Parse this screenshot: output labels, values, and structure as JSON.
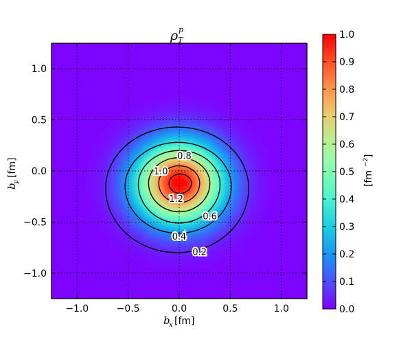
{
  "chart_data": {
    "type": "heatmap",
    "title": "ρ_T^p",
    "title_main": "ρ",
    "title_sub": "T",
    "title_sup": "p",
    "xlabel_var": "b",
    "xlabel_sub": "x",
    "xlabel_unit": "[fm]",
    "ylabel_var": "b",
    "ylabel_sub": "y",
    "ylabel_unit": "[fm]",
    "xlim": [
      -1.25,
      1.25
    ],
    "ylim": [
      -1.25,
      1.25
    ],
    "xticks": [
      -1.0,
      -0.5,
      0.0,
      0.5,
      1.0
    ],
    "xtick_labels": [
      "−1.0",
      "−0.5",
      "0.0",
      "0.5",
      "1.0"
    ],
    "yticks": [
      1.0,
      0.5,
      0.0,
      -0.5,
      -1.0
    ],
    "ytick_labels": [
      "1.0",
      "0.5",
      "0.0",
      "−0.5",
      "−1.0"
    ],
    "grid": true,
    "colormap": "rainbow",
    "colorbar": {
      "range": [
        0.0,
        1.0
      ],
      "ticks": [
        1.0,
        0.9,
        0.8,
        0.7,
        0.6,
        0.5,
        0.4,
        0.3,
        0.2,
        0.1,
        0.0
      ],
      "tick_labels": [
        "1.0",
        "0.9",
        "0.8",
        "0.7",
        "0.6",
        "0.5",
        "0.4",
        "0.3",
        "0.2",
        "0.1",
        "0.0"
      ],
      "label_main": "[fm",
      "label_sup": "−2",
      "label_end": "]",
      "colors": [
        "#8000ff",
        "#4c4ffc",
        "#1996f3",
        "#1acfe3",
        "#4cf2ce",
        "#80ffb4",
        "#b3f296",
        "#e6cf73",
        "#ff964d",
        "#ff4f26",
        "#ff0000"
      ]
    },
    "density_center": [
      0.0,
      -0.12
    ],
    "contours": [
      {
        "level": 0.2,
        "label": "0.2",
        "cx": -0.02,
        "cy": -0.17,
        "rx": 0.7,
        "ry_top": 0.6,
        "ry_bottom": 0.63,
        "label_at": [
          0.2,
          -0.79
        ]
      },
      {
        "level": 0.4,
        "label": "0.4",
        "cx": -0.01,
        "cy": -0.15,
        "rx": 0.52,
        "ry_top": 0.43,
        "ry_bottom": 0.46,
        "label_at": [
          0.0,
          -0.64
        ]
      },
      {
        "level": 0.6,
        "label": "0.6",
        "cx": 0.0,
        "cy": -0.13,
        "rx": 0.4,
        "ry_top": 0.33,
        "ry_bottom": 0.38,
        "label_at": [
          0.3,
          -0.44
        ]
      },
      {
        "level": 0.8,
        "label": "0.8",
        "cx": 0.0,
        "cy": -0.12,
        "rx": 0.3,
        "ry_top": 0.25,
        "ry_bottom": 0.28,
        "label_at": [
          0.05,
          0.15
        ]
      },
      {
        "level": 1.0,
        "label": "1.0",
        "cx": 0.0,
        "cy": -0.12,
        "rx": 0.2,
        "ry_top": 0.17,
        "ry_bottom": 0.19,
        "label_at": [
          -0.18,
          0.0
        ]
      },
      {
        "level": 1.2,
        "label": "1.2",
        "cx": 0.01,
        "cy": -0.12,
        "rx": 0.11,
        "ry_top": 0.09,
        "ry_bottom": 0.1,
        "label_at": [
          -0.03,
          -0.27
        ]
      }
    ]
  }
}
